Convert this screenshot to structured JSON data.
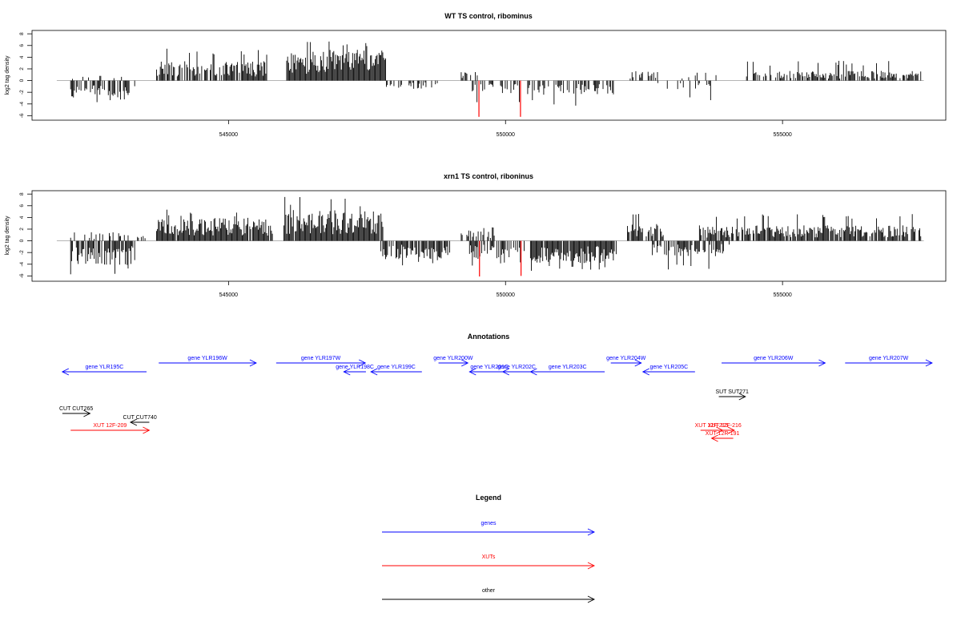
{
  "chart_data": [
    {
      "type": "bar",
      "title": "WT TS control, ribominus",
      "ylabel": "log2 tag density",
      "xlabel": "",
      "xlim": [
        541800,
        557600
      ],
      "ylim": [
        -6.5,
        8.3
      ],
      "xticks": [
        545000,
        550000,
        555000
      ],
      "xtick_labels": [
        "545000",
        "550000",
        "555000"
      ],
      "yticks": [
        -6,
        -4,
        -2,
        0,
        2,
        4,
        6,
        8
      ],
      "ytick_labels": [
        "-6",
        "-4",
        "-2",
        "0",
        "2",
        "4",
        "6",
        "8"
      ],
      "grid": false,
      "bar_color": "#000000",
      "highlight_color": "#ff0000",
      "highlight_bars": [
        {
          "x": 549520,
          "value": -6.2
        },
        {
          "x": 550270,
          "value": -6.2
        }
      ],
      "regions": [
        {
          "start": 542150,
          "end": 543320,
          "sign": -1,
          "avg": 2.1,
          "peak": 4.2,
          "density": 0.55,
          "seed": 11
        },
        {
          "start": 542150,
          "end": 543100,
          "sign": 1,
          "avg": 0.6,
          "peak": 2.0,
          "density": 0.12,
          "seed": 12
        },
        {
          "start": 543700,
          "end": 545700,
          "sign": 1,
          "avg": 2.0,
          "peak": 5.6,
          "density": 0.85,
          "seed": 13
        },
        {
          "start": 546050,
          "end": 547850,
          "sign": 1,
          "avg": 3.2,
          "peak": 7.5,
          "density": 0.97,
          "seed": 14
        },
        {
          "start": 547850,
          "end": 548850,
          "sign": -1,
          "avg": 0.9,
          "peak": 3.3,
          "density": 0.35,
          "seed": 15
        },
        {
          "start": 549200,
          "end": 549650,
          "sign": 1,
          "avg": 1.1,
          "peak": 2.4,
          "density": 0.3,
          "seed": 16
        },
        {
          "start": 549400,
          "end": 550300,
          "sign": -1,
          "avg": 1.3,
          "peak": 3.8,
          "density": 0.4,
          "seed": 17
        },
        {
          "start": 550400,
          "end": 551950,
          "sign": -1,
          "avg": 1.5,
          "peak": 4.3,
          "density": 0.6,
          "seed": 18
        },
        {
          "start": 552250,
          "end": 552750,
          "sign": 1,
          "avg": 1.0,
          "peak": 3.9,
          "density": 0.35,
          "seed": 19
        },
        {
          "start": 552750,
          "end": 553750,
          "sign": -1,
          "avg": 0.9,
          "peak": 3.5,
          "density": 0.25,
          "seed": 20
        },
        {
          "start": 553000,
          "end": 553800,
          "sign": 1,
          "avg": 0.7,
          "peak": 1.5,
          "density": 0.15,
          "seed": 21
        },
        {
          "start": 554350,
          "end": 557500,
          "sign": 1,
          "avg": 1.0,
          "peak": 3.4,
          "density": 0.65,
          "seed": 22
        }
      ]
    },
    {
      "type": "bar",
      "title": "xrn1 TS control, riboninus",
      "ylabel": "log2 tag density",
      "xlabel": "",
      "xlim": [
        541800,
        557600
      ],
      "ylim": [
        -6.5,
        8.3
      ],
      "xticks": [
        545000,
        550000,
        555000
      ],
      "xtick_labels": [
        "545000",
        "550000",
        "555000"
      ],
      "yticks": [
        -6,
        -4,
        -2,
        0,
        2,
        4,
        6,
        8
      ],
      "ytick_labels": [
        "-6",
        "-4",
        "-2",
        "0",
        "2",
        "4",
        "6",
        "8"
      ],
      "grid": false,
      "bar_color": "#000000",
      "highlight_color": "#ff0000",
      "highlight_bars": [
        {
          "x": 549530,
          "value": -6.1
        },
        {
          "x": 550280,
          "value": -6.0
        }
      ],
      "regions": [
        {
          "start": 542150,
          "end": 543320,
          "sign": -1,
          "avg": 2.5,
          "peak": 6.0,
          "density": 0.75,
          "seed": 31
        },
        {
          "start": 542150,
          "end": 543500,
          "sign": 1,
          "avg": 0.9,
          "peak": 2.8,
          "density": 0.3,
          "seed": 32
        },
        {
          "start": 543700,
          "end": 545800,
          "sign": 1,
          "avg": 2.4,
          "peak": 5.5,
          "density": 0.97,
          "seed": 33
        },
        {
          "start": 546000,
          "end": 547800,
          "sign": 1,
          "avg": 3.2,
          "peak": 7.5,
          "density": 0.98,
          "seed": 34
        },
        {
          "start": 547750,
          "end": 549000,
          "sign": -1,
          "avg": 1.9,
          "peak": 4.4,
          "density": 0.85,
          "seed": 35
        },
        {
          "start": 549200,
          "end": 549800,
          "sign": 1,
          "avg": 1.2,
          "peak": 2.8,
          "density": 0.45,
          "seed": 36
        },
        {
          "start": 549350,
          "end": 550350,
          "sign": -1,
          "avg": 1.9,
          "peak": 4.5,
          "density": 0.75,
          "seed": 37
        },
        {
          "start": 550450,
          "end": 552000,
          "sign": -1,
          "avg": 2.3,
          "peak": 5.5,
          "density": 0.95,
          "seed": 38
        },
        {
          "start": 552200,
          "end": 552850,
          "sign": 1,
          "avg": 1.8,
          "peak": 5.6,
          "density": 0.8,
          "seed": 39
        },
        {
          "start": 552650,
          "end": 553900,
          "sign": -1,
          "avg": 1.6,
          "peak": 5.0,
          "density": 0.7,
          "seed": 40
        },
        {
          "start": 553500,
          "end": 557500,
          "sign": 1,
          "avg": 1.6,
          "peak": 4.8,
          "density": 0.85,
          "seed": 41
        },
        {
          "start": 553900,
          "end": 554050,
          "sign": -1,
          "avg": 1.2,
          "peak": 2.5,
          "density": 0.4,
          "seed": 42
        }
      ]
    }
  ],
  "annotations": {
    "title": "Annotations",
    "xlim": [
      541800,
      557600
    ],
    "colors": {
      "gene": "#0000ff",
      "xut": "#ff0000",
      "other": "#000000"
    },
    "features": [
      {
        "label": "gene YLR195C",
        "kind": "gene",
        "start": 542000,
        "end": 543520,
        "strand": "-",
        "row": 1
      },
      {
        "label": "gene YLR196W",
        "kind": "gene",
        "start": 543740,
        "end": 545500,
        "strand": "+",
        "row": 0
      },
      {
        "label": "gene YLR197W",
        "kind": "gene",
        "start": 545860,
        "end": 547470,
        "strand": "+",
        "row": 0
      },
      {
        "label": "gene YLR198C",
        "kind": "gene",
        "start": 547080,
        "end": 547480,
        "strand": "-",
        "row": 1
      },
      {
        "label": "gene YLR199C",
        "kind": "gene",
        "start": 547570,
        "end": 548490,
        "strand": "-",
        "row": 1
      },
      {
        "label": "gene YLR200W",
        "kind": "gene",
        "start": 548790,
        "end": 549320,
        "strand": "+",
        "row": 0
      },
      {
        "label": "gene YLR201C",
        "kind": "gene",
        "start": 549350,
        "end": 550070,
        "strand": "-",
        "row": 1
      },
      {
        "label": "gene YLR202C",
        "kind": "gene",
        "start": 549950,
        "end": 550450,
        "strand": "-",
        "row": 1
      },
      {
        "label": "gene YLR203C",
        "kind": "gene",
        "start": 550450,
        "end": 551790,
        "strand": "-",
        "row": 1
      },
      {
        "label": "gene YLR204W",
        "kind": "gene",
        "start": 551900,
        "end": 552450,
        "strand": "+",
        "row": 0
      },
      {
        "label": "gene YLR205C",
        "kind": "gene",
        "start": 552480,
        "end": 553420,
        "strand": "-",
        "row": 1
      },
      {
        "label": "gene YLR206W",
        "kind": "gene",
        "start": 553900,
        "end": 555770,
        "strand": "+",
        "row": 0
      },
      {
        "label": "gene YLR207W",
        "kind": "gene",
        "start": 556130,
        "end": 557700,
        "strand": "+",
        "row": 0
      },
      {
        "label": "SUT SUT271",
        "kind": "other",
        "start": 553850,
        "end": 554330,
        "strand": "+",
        "row": 2
      },
      {
        "label": "CUT CUT265",
        "kind": "other",
        "start": 542000,
        "end": 542500,
        "strand": "+",
        "row": 3
      },
      {
        "label": "CUT CUT740",
        "kind": "other",
        "start": 543230,
        "end": 543570,
        "strand": "-",
        "row": 4
      },
      {
        "label": "XUT 12F-209",
        "kind": "xut",
        "start": 542150,
        "end": 543570,
        "strand": "+",
        "row": 5
      },
      {
        "label": "XUT 12F-215",
        "kind": "xut",
        "start": 553520,
        "end": 553920,
        "strand": "+",
        "row": 5
      },
      {
        "label": "XUT 12F-216",
        "kind": "xut",
        "start": 553780,
        "end": 554130,
        "strand": "+",
        "row": 5
      },
      {
        "label": "XUT 12R-191",
        "kind": "xut",
        "start": 553720,
        "end": 554110,
        "strand": "-",
        "row": 6
      }
    ]
  },
  "legend": {
    "title": "Legend",
    "items": [
      {
        "label": "genes",
        "color": "#0000ff"
      },
      {
        "label": "XUTs",
        "color": "#ff0000"
      },
      {
        "label": "other",
        "color": "#000000"
      }
    ]
  }
}
